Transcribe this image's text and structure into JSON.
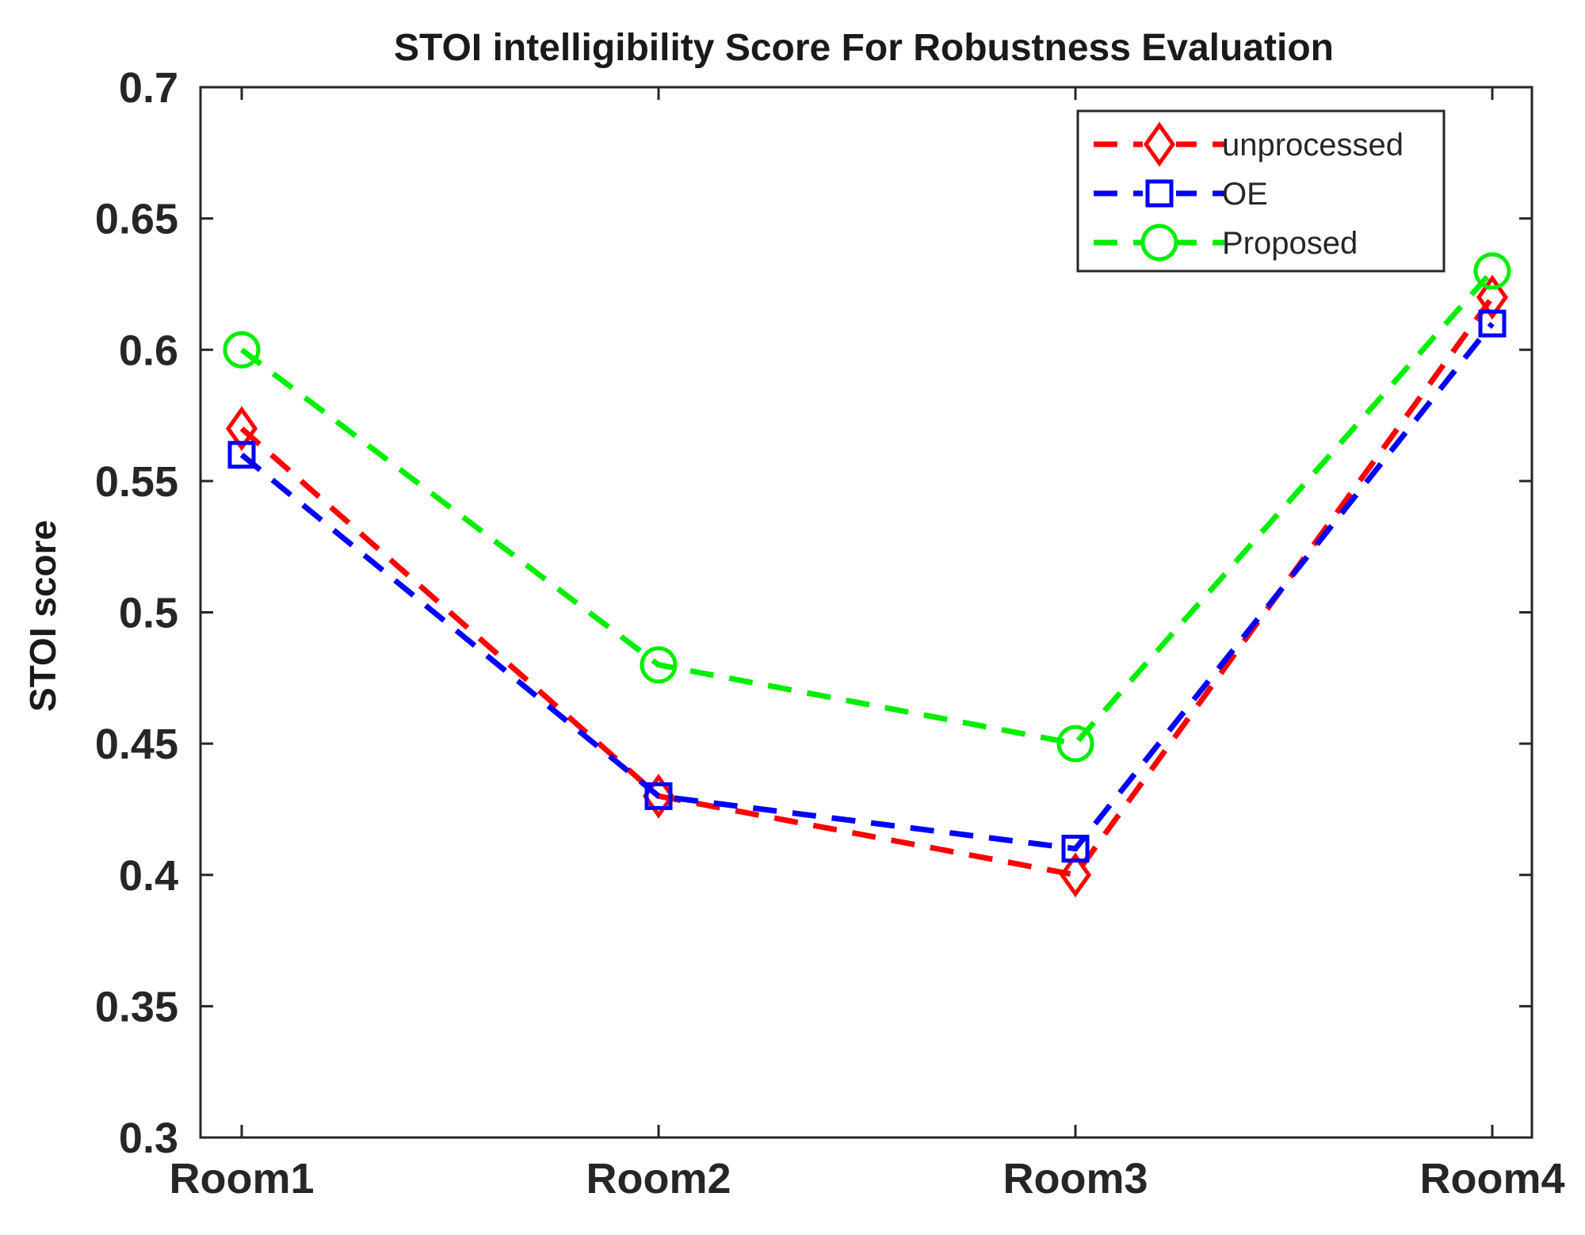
{
  "chart_data": {
    "type": "line",
    "title": "STOI intelligibility Score For Robustness Evaluation",
    "xlabel": "",
    "ylabel": "STOI score",
    "categories": [
      "Room1",
      "Room2",
      "Room3",
      "Room4"
    ],
    "ylim": [
      0.3,
      0.7
    ],
    "yticks": [
      "0.3",
      "0.35",
      "0.4",
      "0.45",
      "0.5",
      "0.55",
      "0.6",
      "0.65",
      "0.7"
    ],
    "grid": false,
    "legend_position": "top-right",
    "series": [
      {
        "name": "unprocessed",
        "values": [
          0.57,
          0.43,
          0.4,
          0.62
        ],
        "color": "#ff0000",
        "marker": "diamond",
        "line": "dashed"
      },
      {
        "name": "OE",
        "values": [
          0.56,
          0.43,
          0.41,
          0.61
        ],
        "color": "#0000ff",
        "marker": "square",
        "line": "dashed"
      },
      {
        "name": "Proposed",
        "values": [
          0.6,
          0.48,
          0.45,
          0.63
        ],
        "color": "#00ee00",
        "marker": "circle",
        "line": "dashed"
      }
    ]
  }
}
